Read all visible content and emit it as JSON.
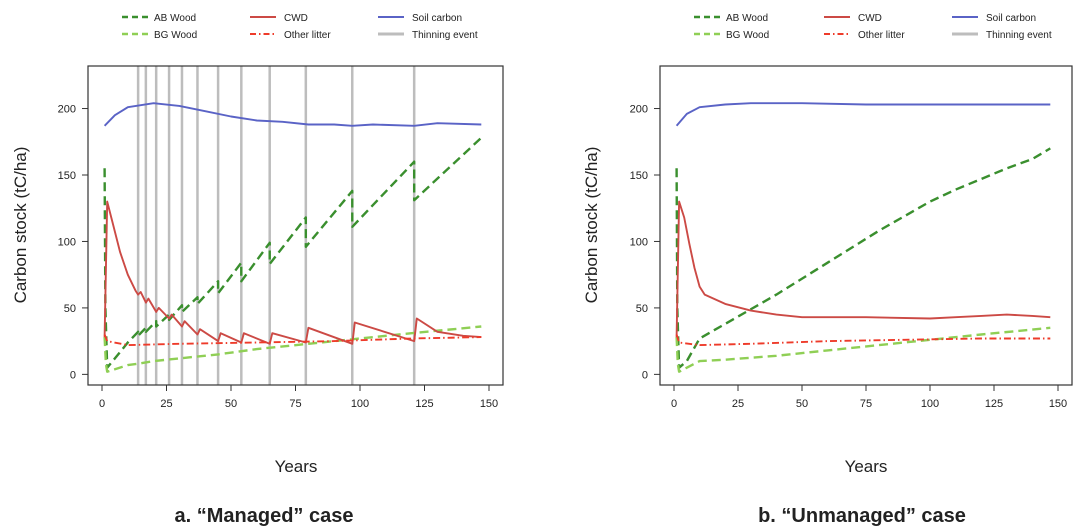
{
  "chart_data": [
    {
      "type": "line",
      "caption": "a. “Managed” case",
      "xlabel": "Years",
      "ylabel": "Carbon stock (tC/ha)",
      "xlim": [
        0,
        150
      ],
      "ylim": [
        -8,
        232
      ],
      "xticks": [
        "0",
        "25",
        "50",
        "75",
        "100",
        "125",
        "150"
      ],
      "yticks": [
        "0",
        "50",
        "100",
        "150",
        "200"
      ],
      "legend_position": "top",
      "legend": [
        "AB Wood",
        "BG Wood",
        "CWD",
        "Other litter",
        "Soil carbon",
        "Thinning event"
      ],
      "colors": {
        "ab_wood": "#3a8f2e",
        "bg_wood": "#8fcf55",
        "cwd": "#cc4a45",
        "other_litter": "#ee3b2a",
        "soil_carbon": "#5a63c6",
        "thinning": "#bdbdbd"
      },
      "thinning_events": [
        14,
        17,
        21,
        26,
        31,
        37,
        45,
        54,
        65,
        79,
        97,
        121
      ],
      "series": [
        {
          "name": "AB Wood",
          "key": "ab_wood",
          "style": "dashed",
          "points": [
            [
              1,
              155
            ],
            [
              1.3,
              50
            ],
            [
              2,
              5
            ],
            [
              5,
              12
            ],
            [
              10,
              24
            ],
            [
              14,
              32
            ],
            [
              14,
              29
            ],
            [
              17,
              35
            ],
            [
              17,
              32
            ],
            [
              21,
              40
            ],
            [
              21,
              36
            ],
            [
              26,
              45
            ],
            [
              26,
              41
            ],
            [
              31,
              52
            ],
            [
              31,
              47
            ],
            [
              37,
              58
            ],
            [
              37,
              53
            ],
            [
              45,
              70
            ],
            [
              45,
              61
            ],
            [
              54,
              84
            ],
            [
              54,
              70
            ],
            [
              65,
              99
            ],
            [
              65,
              83
            ],
            [
              79,
              118
            ],
            [
              79,
              96
            ],
            [
              97,
              138
            ],
            [
              97,
              111
            ],
            [
              121,
              160
            ],
            [
              121,
              131
            ],
            [
              147,
              178
            ]
          ]
        },
        {
          "name": "BG Wood",
          "key": "bg_wood",
          "style": "dashed",
          "points": [
            [
              1,
              28
            ],
            [
              1.5,
              8
            ],
            [
              2,
              2
            ],
            [
              10,
              7
            ],
            [
              14,
              8
            ],
            [
              20,
              10
            ],
            [
              30,
              12
            ],
            [
              45,
              15
            ],
            [
              60,
              19
            ],
            [
              80,
              23
            ],
            [
              100,
              27
            ],
            [
              120,
              31
            ],
            [
              147,
              36
            ]
          ]
        },
        {
          "name": "CWD",
          "key": "cwd",
          "style": "solid",
          "points": [
            [
              1,
              28
            ],
            [
              2,
              130
            ],
            [
              4,
              115
            ],
            [
              7,
              92
            ],
            [
              10,
              75
            ],
            [
              13,
              63
            ],
            [
              14,
              60
            ],
            [
              15,
              62
            ],
            [
              17,
              54
            ],
            [
              18,
              57
            ],
            [
              21,
              47
            ],
            [
              22,
              50
            ],
            [
              26,
              42
            ],
            [
              27,
              45
            ],
            [
              31,
              36
            ],
            [
              32,
              40
            ],
            [
              37,
              30
            ],
            [
              38,
              34
            ],
            [
              45,
              25
            ],
            [
              46,
              31
            ],
            [
              54,
              24
            ],
            [
              55,
              31
            ],
            [
              65,
              23
            ],
            [
              66,
              31
            ],
            [
              79,
              24
            ],
            [
              80,
              35
            ],
            [
              97,
              23
            ],
            [
              98,
              39
            ],
            [
              121,
              25
            ],
            [
              122,
              42
            ],
            [
              130,
              32
            ],
            [
              140,
              29
            ],
            [
              147,
              28
            ]
          ]
        },
        {
          "name": "Other litter",
          "key": "other_litter",
          "style": "dashdot",
          "points": [
            [
              1,
              30
            ],
            [
              2,
              25
            ],
            [
              10,
              22
            ],
            [
              30,
              23
            ],
            [
              60,
              24
            ],
            [
              90,
              25
            ],
            [
              120,
              27
            ],
            [
              147,
              28
            ]
          ]
        },
        {
          "name": "Soil carbon",
          "key": "soil_carbon",
          "style": "solid",
          "points": [
            [
              1,
              187
            ],
            [
              5,
              195
            ],
            [
              10,
              201
            ],
            [
              20,
              204
            ],
            [
              30,
              202
            ],
            [
              40,
              198
            ],
            [
              50,
              194
            ],
            [
              60,
              191
            ],
            [
              70,
              190
            ],
            [
              80,
              188
            ],
            [
              90,
              188
            ],
            [
              97,
              187
            ],
            [
              105,
              188
            ],
            [
              121,
              187
            ],
            [
              130,
              189
            ],
            [
              147,
              188
            ]
          ]
        }
      ]
    },
    {
      "type": "line",
      "caption": "b. “Unmanaged” case",
      "xlabel": "Years",
      "ylabel": "Carbon stock (tC/ha)",
      "xlim": [
        0,
        150
      ],
      "ylim": [
        -8,
        232
      ],
      "xticks": [
        "0",
        "25",
        "50",
        "75",
        "100",
        "125",
        "150"
      ],
      "yticks": [
        "0",
        "50",
        "100",
        "150",
        "200"
      ],
      "legend_position": "top",
      "legend": [
        "AB Wood",
        "BG Wood",
        "CWD",
        "Other litter",
        "Soil carbon",
        "Thinning event"
      ],
      "colors": {
        "ab_wood": "#3a8f2e",
        "bg_wood": "#8fcf55",
        "cwd": "#cc4a45",
        "other_litter": "#ee3b2a",
        "soil_carbon": "#5a63c6",
        "thinning": "#bdbdbd"
      },
      "thinning_events": [],
      "series": [
        {
          "name": "AB Wood",
          "key": "ab_wood",
          "style": "dashed",
          "points": [
            [
              1,
              155
            ],
            [
              1.3,
              50
            ],
            [
              2,
              5
            ],
            [
              5,
              10
            ],
            [
              10,
              27
            ],
            [
              20,
              38
            ],
            [
              40,
              60
            ],
            [
              60,
              84
            ],
            [
              80,
              108
            ],
            [
              100,
              130
            ],
            [
              110,
              139
            ],
            [
              120,
              147
            ],
            [
              130,
              155
            ],
            [
              140,
              162
            ],
            [
              147,
              170
            ]
          ]
        },
        {
          "name": "BG Wood",
          "key": "bg_wood",
          "style": "dashed",
          "points": [
            [
              1,
              28
            ],
            [
              1.5,
              8
            ],
            [
              2,
              2
            ],
            [
              5,
              5
            ],
            [
              10,
              10
            ],
            [
              20,
              11
            ],
            [
              40,
              14
            ],
            [
              60,
              18
            ],
            [
              80,
              22
            ],
            [
              100,
              26
            ],
            [
              120,
              30
            ],
            [
              147,
              35
            ]
          ]
        },
        {
          "name": "CWD",
          "key": "cwd",
          "style": "solid",
          "points": [
            [
              1,
              28
            ],
            [
              2,
              130
            ],
            [
              4,
              118
            ],
            [
              6,
              98
            ],
            [
              8,
              80
            ],
            [
              10,
              66
            ],
            [
              12,
              60
            ],
            [
              20,
              53
            ],
            [
              30,
              48
            ],
            [
              40,
              45
            ],
            [
              50,
              43
            ],
            [
              75,
              43
            ],
            [
              100,
              42
            ],
            [
              110,
              43
            ],
            [
              120,
              44
            ],
            [
              130,
              45
            ],
            [
              140,
              44
            ],
            [
              147,
              43
            ]
          ]
        },
        {
          "name": "Other litter",
          "key": "other_litter",
          "style": "dashdot",
          "points": [
            [
              1,
              30
            ],
            [
              2,
              24
            ],
            [
              10,
              22
            ],
            [
              30,
              23
            ],
            [
              60,
              25
            ],
            [
              90,
              26
            ],
            [
              120,
              27
            ],
            [
              147,
              27
            ]
          ]
        },
        {
          "name": "Soil carbon",
          "key": "soil_carbon",
          "style": "solid",
          "points": [
            [
              1,
              187
            ],
            [
              5,
              196
            ],
            [
              10,
              201
            ],
            [
              20,
              203
            ],
            [
              30,
              204
            ],
            [
              50,
              204
            ],
            [
              75,
              203
            ],
            [
              100,
              203
            ],
            [
              125,
              203
            ],
            [
              147,
              203
            ]
          ]
        }
      ]
    }
  ]
}
